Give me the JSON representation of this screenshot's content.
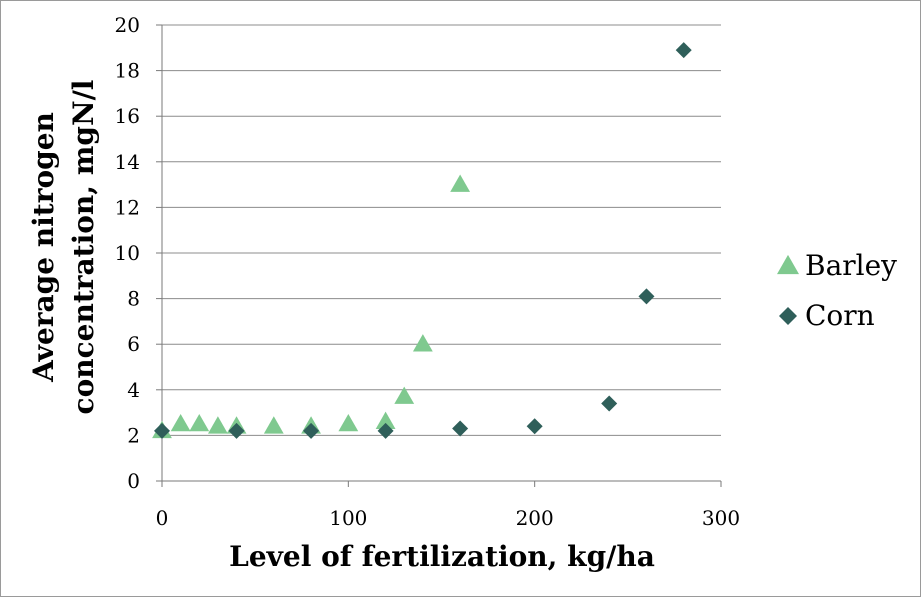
{
  "chart_data": {
    "type": "scatter",
    "title": "",
    "xlabel": "Level of fertilization, kg/ha",
    "ylabel_lines": [
      "Average nitrogen",
      "concentration, mgN/l"
    ],
    "xlim": [
      0,
      300
    ],
    "ylim": [
      0,
      20
    ],
    "x_ticks": [
      0,
      100,
      200,
      300
    ],
    "y_ticks": [
      0,
      2,
      4,
      6,
      8,
      10,
      12,
      14,
      16,
      18,
      20
    ],
    "grid": "horizontal",
    "legend_position": "right",
    "series": [
      {
        "name": "Barley",
        "marker": "triangle",
        "color": "#7fc98f",
        "points": [
          [
            0,
            2.2
          ],
          [
            10,
            2.5
          ],
          [
            20,
            2.5
          ],
          [
            30,
            2.4
          ],
          [
            40,
            2.4
          ],
          [
            60,
            2.4
          ],
          [
            80,
            2.4
          ],
          [
            100,
            2.5
          ],
          [
            120,
            2.6
          ],
          [
            130,
            3.7
          ],
          [
            140,
            6.0
          ],
          [
            160,
            13.0
          ]
        ]
      },
      {
        "name": "Corn",
        "marker": "diamond",
        "color": "#2f5f5a",
        "points": [
          [
            0,
            2.2
          ],
          [
            40,
            2.2
          ],
          [
            80,
            2.2
          ],
          [
            120,
            2.2
          ],
          [
            160,
            2.3
          ],
          [
            200,
            2.4
          ],
          [
            240,
            3.4
          ],
          [
            260,
            8.1
          ],
          [
            280,
            18.9
          ]
        ]
      }
    ]
  }
}
